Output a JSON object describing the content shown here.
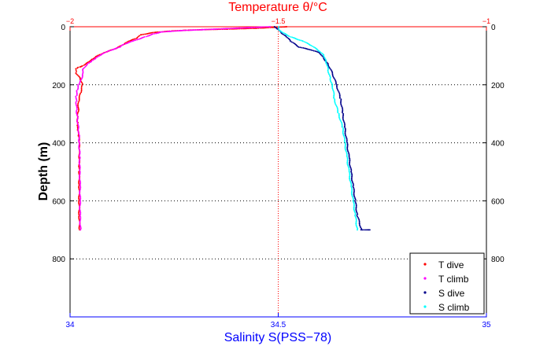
{
  "chart_data": {
    "type": "scatter",
    "top_axis": {
      "label": "Temperature θ/°C",
      "range": [
        -2,
        -1
      ],
      "ticks": [
        -2,
        -1.5,
        -1
      ],
      "tick_labels": [
        "−2",
        "−1.5",
        "−1"
      ],
      "color": "#ff0000"
    },
    "bottom_axis": {
      "label": "Salinity S(PSS−78)",
      "range": [
        34,
        35
      ],
      "ticks": [
        34,
        34.5,
        35
      ],
      "tick_labels": [
        "34",
        "34.5",
        "35"
      ],
      "color": "#0000ff"
    },
    "y_axis": {
      "label": "Depth (m)",
      "range": [
        0,
        1000
      ],
      "inverted": true,
      "ticks": [
        0,
        200,
        400,
        600,
        800
      ],
      "tick_labels": [
        "0",
        "200",
        "400",
        "600",
        "800"
      ]
    },
    "grid": "dotted",
    "legend_position": "bottom-right",
    "series": [
      {
        "name": "T dive",
        "axis": "top",
        "color": "#ff0000",
        "points": [
          [
            -1.48,
            0
          ],
          [
            -1.55,
            5
          ],
          [
            -1.62,
            8
          ],
          [
            -1.68,
            10
          ],
          [
            -1.72,
            12
          ],
          [
            -1.76,
            15
          ],
          [
            -1.8,
            20
          ],
          [
            -1.83,
            28
          ],
          [
            -1.84,
            40
          ],
          [
            -1.86,
            50
          ],
          [
            -1.87,
            60
          ],
          [
            -1.89,
            75
          ],
          [
            -1.92,
            90
          ],
          [
            -1.94,
            105
          ],
          [
            -1.95,
            115
          ],
          [
            -1.96,
            125
          ],
          [
            -1.97,
            135
          ],
          [
            -1.98,
            140
          ],
          [
            -1.985,
            145
          ],
          [
            -1.985,
            160
          ],
          [
            -1.975,
            180
          ],
          [
            -1.97,
            200
          ],
          [
            -1.975,
            230
          ],
          [
            -1.98,
            260
          ],
          [
            -1.98,
            290
          ],
          [
            -1.982,
            310
          ],
          [
            -1.982,
            330
          ],
          [
            -1.983,
            345
          ],
          [
            -1.981,
            360
          ],
          [
            -1.979,
            380
          ],
          [
            -1.978,
            400
          ],
          [
            -1.978,
            420
          ],
          [
            -1.978,
            450
          ],
          [
            -1.978,
            480
          ],
          [
            -1.978,
            500
          ],
          [
            -1.978,
            550
          ],
          [
            -1.978,
            600
          ],
          [
            -1.978,
            650
          ],
          [
            -1.977,
            700
          ]
        ]
      },
      {
        "name": "T climb",
        "axis": "top",
        "color": "#ff00ff",
        "points": [
          [
            -1.52,
            0
          ],
          [
            -1.6,
            5
          ],
          [
            -1.68,
            10
          ],
          [
            -1.73,
            13
          ],
          [
            -1.78,
            18
          ],
          [
            -1.8,
            25
          ],
          [
            -1.82,
            35
          ],
          [
            -1.85,
            50
          ],
          [
            -1.87,
            60
          ],
          [
            -1.88,
            70
          ],
          [
            -1.91,
            85
          ],
          [
            -1.93,
            100
          ],
          [
            -1.94,
            110
          ],
          [
            -1.95,
            120
          ],
          [
            -1.96,
            130
          ],
          [
            -1.97,
            150
          ],
          [
            -1.97,
            170
          ],
          [
            -1.975,
            185
          ],
          [
            -1.98,
            200
          ],
          [
            -1.983,
            220
          ],
          [
            -1.985,
            240
          ],
          [
            -1.985,
            260
          ],
          [
            -1.984,
            290
          ],
          [
            -1.982,
            320
          ],
          [
            -1.98,
            350
          ],
          [
            -1.978,
            380
          ],
          [
            -1.978,
            400
          ],
          [
            -1.977,
            450
          ],
          [
            -1.977,
            500
          ],
          [
            -1.976,
            550
          ],
          [
            -1.976,
            600
          ],
          [
            -1.976,
            650
          ],
          [
            -1.975,
            700
          ]
        ]
      },
      {
        "name": "S dive",
        "axis": "bottom",
        "color": "#00008b",
        "points": [
          [
            34.49,
            0
          ],
          [
            34.5,
            10
          ],
          [
            34.51,
            25
          ],
          [
            34.52,
            35
          ],
          [
            34.53,
            50
          ],
          [
            34.55,
            70
          ],
          [
            34.58,
            80
          ],
          [
            34.6,
            90
          ],
          [
            34.61,
            110
          ],
          [
            34.62,
            130
          ],
          [
            34.63,
            160
          ],
          [
            34.64,
            200
          ],
          [
            34.65,
            250
          ],
          [
            34.655,
            300
          ],
          [
            34.66,
            350
          ],
          [
            34.665,
            400
          ],
          [
            34.67,
            450
          ],
          [
            34.675,
            500
          ],
          [
            34.68,
            550
          ],
          [
            34.685,
            600
          ],
          [
            34.69,
            650
          ],
          [
            34.7,
            700
          ],
          [
            34.72,
            700
          ]
        ]
      },
      {
        "name": "S climb",
        "axis": "bottom",
        "color": "#00ffff",
        "points": [
          [
            34.5,
            0
          ],
          [
            34.5,
            10
          ],
          [
            34.51,
            20
          ],
          [
            34.53,
            35
          ],
          [
            34.56,
            50
          ],
          [
            34.58,
            65
          ],
          [
            34.6,
            85
          ],
          [
            34.61,
            100
          ],
          [
            34.615,
            120
          ],
          [
            34.62,
            150
          ],
          [
            34.625,
            180
          ],
          [
            34.63,
            200
          ],
          [
            34.635,
            250
          ],
          [
            34.645,
            300
          ],
          [
            34.655,
            350
          ],
          [
            34.66,
            400
          ],
          [
            34.665,
            450
          ],
          [
            34.67,
            500
          ],
          [
            34.675,
            550
          ],
          [
            34.68,
            600
          ],
          [
            34.685,
            650
          ],
          [
            34.69,
            700
          ]
        ]
      }
    ]
  }
}
